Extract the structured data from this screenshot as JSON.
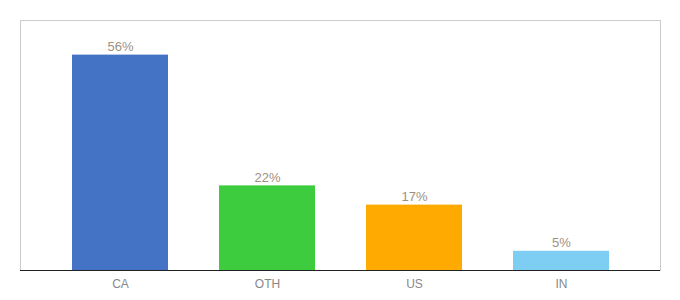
{
  "chart_data": {
    "type": "bar",
    "categories": [
      "CA",
      "OTH",
      "US",
      "IN"
    ],
    "values": [
      56,
      22,
      17,
      5
    ],
    "value_labels": [
      "56%",
      "22%",
      "17%",
      "5%"
    ],
    "colors": [
      "#4472c4",
      "#3dcc3d",
      "#ffaa00",
      "#7ecef4"
    ],
    "ylim": [
      0,
      65
    ],
    "grid": false,
    "data_labels": true,
    "tick_labels": "x"
  }
}
